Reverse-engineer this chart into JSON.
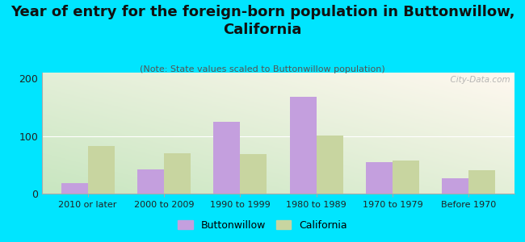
{
  "title": "Year of entry for the foreign-born population in Buttonwillow,\nCalifornia",
  "subtitle": "(Note: State values scaled to Buttonwillow population)",
  "categories": [
    "2010 or later",
    "2000 to 2009",
    "1990 to 1999",
    "1980 to 1989",
    "1970 to 1979",
    "Before 1970"
  ],
  "buttonwillow_values": [
    18,
    42,
    125,
    168,
    55,
    27
  ],
  "california_values": [
    83,
    70,
    68,
    101,
    57,
    40
  ],
  "buttonwillow_color": "#c49fde",
  "california_color": "#c8d5a0",
  "ylim": [
    0,
    210
  ],
  "yticks": [
    0,
    100,
    200
  ],
  "background_outer": "#00e5ff",
  "bar_width": 0.35,
  "title_fontsize": 13,
  "subtitle_fontsize": 8,
  "watermark": "  City-Data.com"
}
